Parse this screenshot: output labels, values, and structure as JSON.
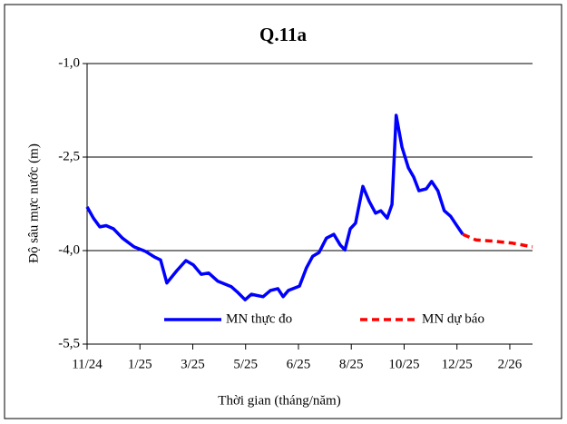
{
  "chart_data": {
    "type": "line",
    "title": "Q.11a",
    "x_label": "Thời gian (tháng/năm)",
    "y_label": "Độ sâu mực nước (m)",
    "xlim": [
      0,
      8.43
    ],
    "ylim": [
      -5.5,
      -1.0
    ],
    "xticks": [
      {
        "value": 0,
        "label": "11/24"
      },
      {
        "value": 1,
        "label": "1/25"
      },
      {
        "value": 2,
        "label": "3/25"
      },
      {
        "value": 3,
        "label": "5/25"
      },
      {
        "value": 4,
        "label": "6/25"
      },
      {
        "value": 5,
        "label": "8/25"
      },
      {
        "value": 6,
        "label": "10/25"
      },
      {
        "value": 7,
        "label": "12/25"
      },
      {
        "value": 8,
        "label": "2/26"
      }
    ],
    "yticks": [
      {
        "value": -5.5,
        "label": "-5,5"
      },
      {
        "value": -4.0,
        "label": "-4,0"
      },
      {
        "value": -2.5,
        "label": "-2,5"
      },
      {
        "value": -1.0,
        "label": "-1,0"
      }
    ],
    "grid": true,
    "series": [
      {
        "name": "MN thực đo",
        "color": "#0000ff",
        "dashed": false,
        "x": [
          0,
          0.12,
          0.24,
          0.36,
          0.5,
          0.67,
          0.89,
          1.1,
          1.27,
          1.39,
          1.51,
          1.7,
          1.87,
          2.01,
          2.16,
          2.3,
          2.47,
          2.73,
          2.85,
          2.99,
          3.11,
          3.33,
          3.47,
          3.61,
          3.71,
          3.81,
          4.02,
          4.15,
          4.27,
          4.39,
          4.53,
          4.67,
          4.79,
          4.88,
          4.98,
          5.08,
          5.22,
          5.34,
          5.46,
          5.56,
          5.68,
          5.77,
          5.85,
          5.96,
          6.08,
          6.18,
          6.28,
          6.42,
          6.52,
          6.64,
          6.76,
          6.88,
          6.99,
          7.11
        ],
        "values": [
          -3.3,
          -3.48,
          -3.62,
          -3.6,
          -3.65,
          -3.8,
          -3.94,
          -4.01,
          -4.1,
          -4.15,
          -4.52,
          -4.32,
          -4.16,
          -4.23,
          -4.38,
          -4.36,
          -4.49,
          -4.58,
          -4.67,
          -4.79,
          -4.7,
          -4.74,
          -4.64,
          -4.61,
          -4.74,
          -4.64,
          -4.57,
          -4.28,
          -4.09,
          -4.03,
          -3.8,
          -3.74,
          -3.91,
          -3.99,
          -3.65,
          -3.56,
          -2.97,
          -3.21,
          -3.4,
          -3.36,
          -3.48,
          -3.26,
          -1.83,
          -2.34,
          -2.67,
          -2.82,
          -3.04,
          -3.01,
          -2.89,
          -3.04,
          -3.36,
          -3.45,
          -3.59,
          -3.74
        ]
      },
      {
        "name": "MN dự báo",
        "color": "#ff0000",
        "dashed": true,
        "x": [
          7.11,
          7.36,
          7.71,
          8.05,
          8.43
        ],
        "values": [
          -3.74,
          -3.83,
          -3.85,
          -3.88,
          -3.94
        ]
      }
    ]
  }
}
